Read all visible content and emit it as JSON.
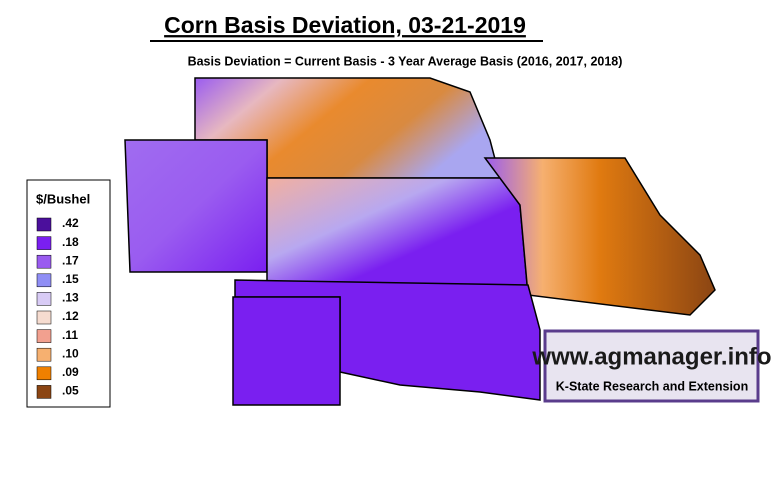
{
  "header": {
    "title": "Corn Basis Deviation, 03-21-2019",
    "subtitle": "Basis Deviation = Current Basis - 3 Year Average Basis (2016, 2017, 2018)"
  },
  "legend": {
    "title": "$/Bushel",
    "items": [
      {
        "label": ".42",
        "color": "#4b0f9c"
      },
      {
        "label": ".18",
        "color": "#7a1ff0"
      },
      {
        "label": ".17",
        "color": "#9a5cf0"
      },
      {
        "label": ".15",
        "color": "#8f8ef5"
      },
      {
        "label": ".13",
        "color": "#d8cbf5"
      },
      {
        "label": ".12",
        "color": "#f6dcd0"
      },
      {
        "label": ".11",
        "color": "#f2a08f"
      },
      {
        "label": ".10",
        "color": "#f6b070"
      },
      {
        "label": ".09",
        "color": "#f08000"
      },
      {
        "label": ".05",
        "color": "#8b4513"
      }
    ]
  },
  "logo": {
    "url": "www.agmanager.info",
    "org": "K-State Research and Extension"
  }
}
